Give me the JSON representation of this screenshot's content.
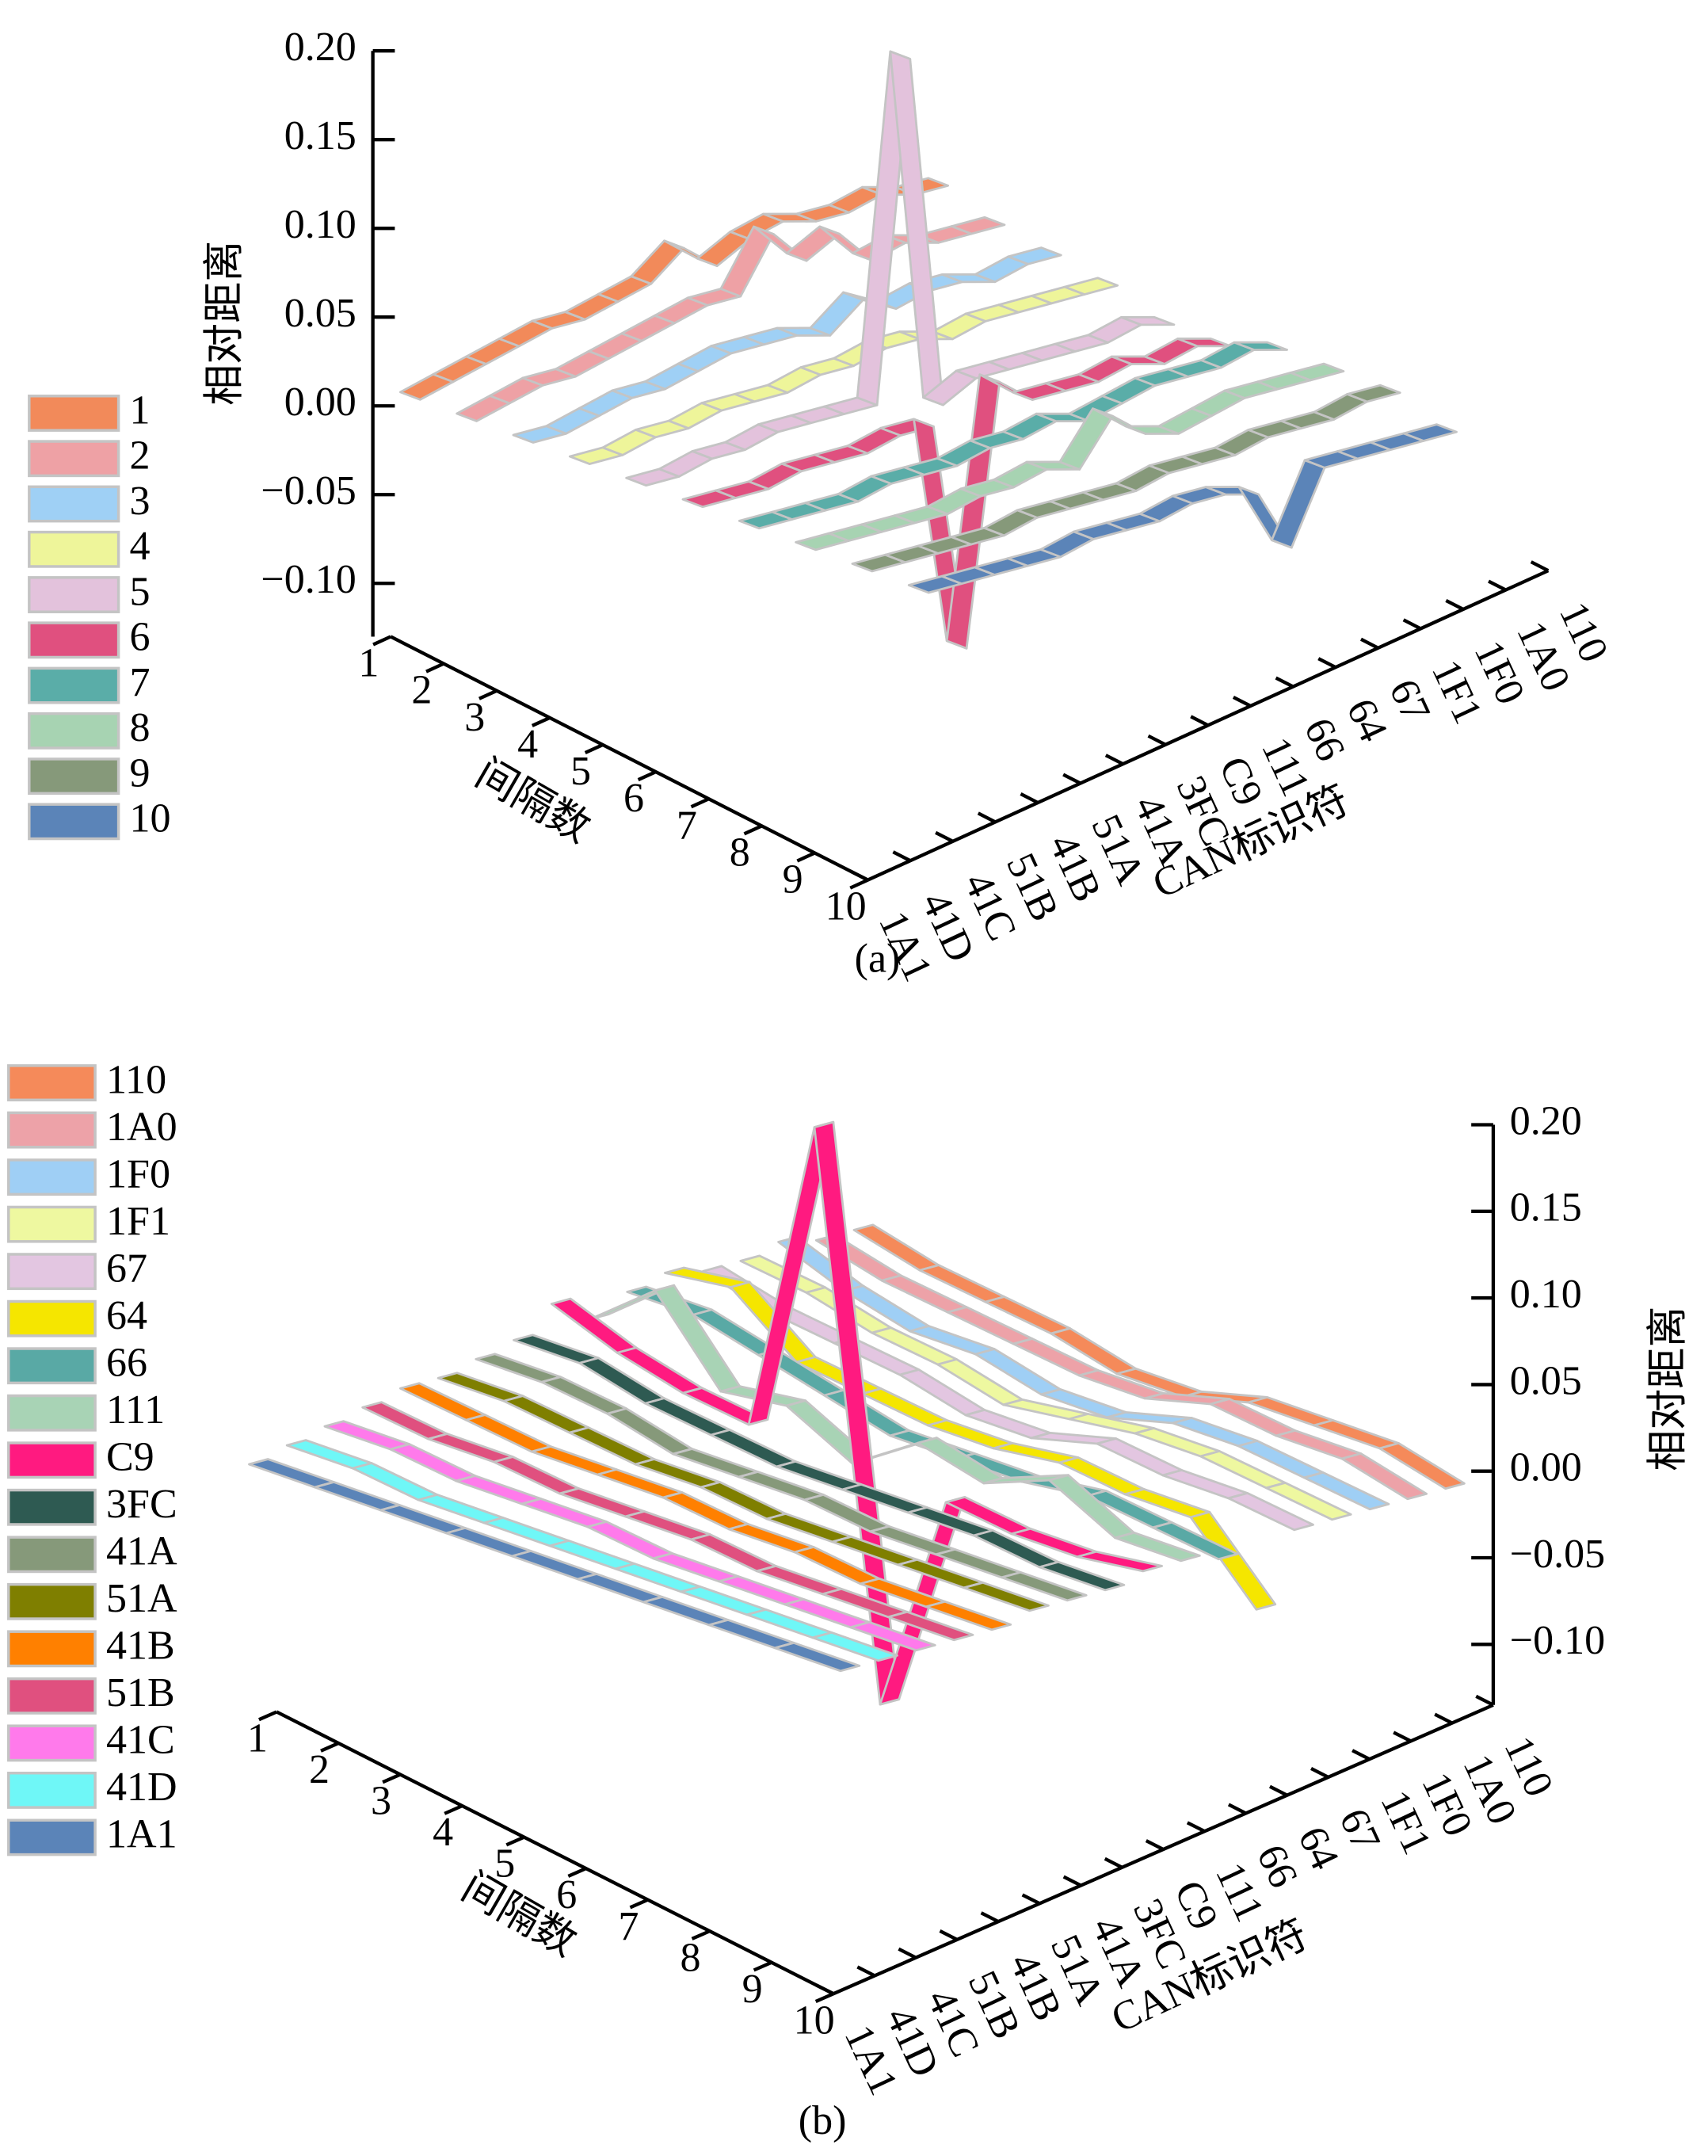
{
  "chart_data": [
    {
      "type": "ribbon3d",
      "caption": "(a)",
      "zlabel": "相对距离",
      "xlabel": "CAN标识符",
      "depth_label": "间隔数",
      "x": [
        "1A1",
        "41D",
        "41C",
        "51B",
        "41B",
        "51A",
        "41A",
        "3FC",
        "C9",
        "111",
        "66",
        "64",
        "67",
        "1F1",
        "1F0",
        "1A0",
        "110"
      ],
      "depth": [
        1,
        2,
        3,
        4,
        5,
        6,
        7,
        8,
        9,
        10
      ],
      "zlim": [
        -0.13,
        0.2
      ],
      "zticks": [
        {
          "value": 0.2,
          "label": "0.20"
        },
        {
          "value": 0.15,
          "label": "0.15"
        },
        {
          "value": 0.1,
          "label": "0.10"
        },
        {
          "value": 0.05,
          "label": "0.05"
        },
        {
          "value": 0,
          "label": "0.00"
        },
        {
          "value": -0.05,
          "label": "−0.05"
        },
        {
          "value": -0.1,
          "label": "−0.10"
        }
      ],
      "series": [
        {
          "name": "1",
          "color": "#f28a5a",
          "values": [
            0,
            0.005,
            0.01,
            0.015,
            0.02,
            0.02,
            0.025,
            0.03,
            0.045,
            0.03,
            0.04,
            0.045,
            0.04,
            0.04,
            0.045,
            0.04,
            0.04
          ]
        },
        {
          "name": "2",
          "color": "#eea1a5",
          "values": [
            0,
            0.005,
            0.01,
            0.01,
            0.015,
            0.02,
            0.025,
            0.03,
            0.03,
            0.06,
            0.04,
            0.05,
            0.03,
            0.035,
            0.03,
            0.03,
            0.03
          ]
        },
        {
          "name": "3",
          "color": "#9fd0f5",
          "values": [
            0,
            0,
            0.005,
            0.01,
            0.01,
            0.015,
            0.02,
            0.02,
            0.02,
            0.015,
            0.03,
            0.02,
            0.025,
            0.025,
            0.02,
            0.025,
            0.025
          ]
        },
        {
          "name": "4",
          "color": "#eef59a",
          "values": [
            0,
            0,
            0.005,
            0.005,
            0.01,
            0.01,
            0.01,
            0.015,
            0.015,
            0.02,
            0.02,
            0.015,
            0.02,
            0.02,
            0.02,
            0.02,
            0.02
          ]
        },
        {
          "name": "5",
          "color": "#e3c2dc",
          "values": [
            0,
            0,
            0.005,
            0.005,
            0.01,
            0.01,
            0.01,
            0.01,
            0.2,
            0,
            0.01,
            0.01,
            0.01,
            0.01,
            0.01,
            0.015,
            0.01
          ]
        },
        {
          "name": "6",
          "color": "#e0507f",
          "values": [
            0,
            0,
            0,
            0.005,
            0.005,
            0.005,
            0.01,
            0.01,
            -0.12,
            0.025,
            0.01,
            0.01,
            0.01,
            0.015,
            0.01,
            0.015,
            0.01
          ]
        },
        {
          "name": "7",
          "color": "#5aada8",
          "values": [
            0,
            0,
            0,
            0,
            0.005,
            0.005,
            0.005,
            0.01,
            0.01,
            0.015,
            0.01,
            0.015,
            0.02,
            0.02,
            0.02,
            0.025,
            0.02
          ]
        },
        {
          "name": "8",
          "color": "#a7d3b2",
          "values": [
            0,
            0,
            0,
            0,
            0,
            0.005,
            0.005,
            0.01,
            0.005,
            0.03,
            0.015,
            0.01,
            0.015,
            0.02,
            0.02,
            0.02,
            0.02
          ]
        },
        {
          "name": "9",
          "color": "#86997a",
          "values": [
            0,
            0,
            0,
            0,
            0,
            0.005,
            0.005,
            0.005,
            0.005,
            0.01,
            0.01,
            0.01,
            0.015,
            0.015,
            0.015,
            0.02,
            0.02
          ]
        },
        {
          "name": "10",
          "color": "#5b84b8",
          "values": [
            0,
            0,
            0,
            0,
            0,
            0.005,
            0.005,
            0.005,
            0.01,
            0.01,
            0.005,
            -0.03,
            0.01,
            0.01,
            0.01,
            0.01,
            0.01
          ]
        }
      ]
    },
    {
      "type": "ribbon3d",
      "caption": "(b)",
      "zlabel": "相对距离",
      "xlabel": "间隔数",
      "depth_label": "CAN标识符",
      "x": [
        1,
        2,
        3,
        4,
        5,
        6,
        7,
        8,
        9,
        10
      ],
      "depth": [
        "1A1",
        "41D",
        "41C",
        "51B",
        "41B",
        "51A",
        "41A",
        "3FC",
        "C9",
        "111",
        "66",
        "64",
        "67",
        "1F1",
        "1F0",
        "1A0",
        "110"
      ],
      "zlim": [
        -0.135,
        0.2
      ],
      "zticks": [
        {
          "value": 0.2,
          "label": "0.20"
        },
        {
          "value": 0.15,
          "label": "0.15"
        },
        {
          "value": 0.1,
          "label": "0.10"
        },
        {
          "value": 0.05,
          "label": "0.05"
        },
        {
          "value": 0,
          "label": "0.00"
        },
        {
          "value": -0.05,
          "label": "−0.05"
        },
        {
          "value": -0.1,
          "label": "−0.10"
        }
      ],
      "series": [
        {
          "name": "110",
          "color": "#f58a5a",
          "values": [
            0.04,
            0.03,
            0.025,
            0.02,
            0.01,
            0.01,
            0.02,
            0.02,
            0.02,
            0.01
          ]
        },
        {
          "name": "1A0",
          "color": "#eda2a8",
          "values": [
            0.04,
            0.03,
            0.025,
            0.02,
            0.015,
            0.015,
            0.025,
            0.02,
            0.02,
            0.01
          ]
        },
        {
          "name": "1F0",
          "color": "#9fcff5",
          "values": [
            0.045,
            0.03,
            0.02,
            0.02,
            0.01,
            0.01,
            0.02,
            0.02,
            0.015,
            0.01
          ]
        },
        {
          "name": "1F1",
          "color": "#eef8a0",
          "values": [
            0.04,
            0.035,
            0.025,
            0.02,
            0.01,
            0.015,
            0.02,
            0.02,
            0.015,
            0.01
          ]
        },
        {
          "name": "67",
          "color": "#e3c6e1",
          "values": [
            0.04,
            0.03,
            0.025,
            0.02,
            0.01,
            0.01,
            0.02,
            0.015,
            0.015,
            0.01
          ]
        },
        {
          "name": "64",
          "color": "#f5e600",
          "values": [
            0.045,
            0.05,
            0.02,
            0.015,
            0.01,
            0.01,
            0.015,
            0.01,
            0.01,
            -0.03
          ]
        },
        {
          "name": "66",
          "color": "#59a9a5",
          "values": [
            0.04,
            0.04,
            0.03,
            0.02,
            0.01,
            0.01,
            0.01,
            0.015,
            0.01,
            0.005
          ]
        },
        {
          "name": "111",
          "color": "#a8d3b5",
          "values": [
            0.03,
            0.06,
            0.015,
            0.02,
            0,
            0.025,
            0.015,
            0.03,
            0.01,
            0.01
          ]
        },
        {
          "name": "C9",
          "color": "#ff1a80",
          "values": [
            0.045,
            0.03,
            0.02,
            0.015,
            0.2,
            -0.12,
            0.01,
            0.005,
            0.005,
            0.01
          ]
        },
        {
          "name": "3FC",
          "color": "#2e5a52",
          "values": [
            0.03,
            0.03,
            0.02,
            0.015,
            0.01,
            0.01,
            0.01,
            0.01,
            0.005,
            0.005
          ]
        },
        {
          "name": "41A",
          "color": "#86997a",
          "values": [
            0.025,
            0.025,
            0.02,
            0.01,
            0.01,
            0.01,
            0.005,
            0.005,
            0.005,
            0.005
          ]
        },
        {
          "name": "51A",
          "color": "#7f7f00",
          "values": [
            0.02,
            0.02,
            0.015,
            0.01,
            0.01,
            0.005,
            0.005,
            0.005,
            0.005,
            0.005
          ]
        },
        {
          "name": "41B",
          "color": "#ff8000",
          "values": [
            0.02,
            0.015,
            0.01,
            0.01,
            0.01,
            0.005,
            0.005,
            0,
            0,
            0
          ]
        },
        {
          "name": "51B",
          "color": "#e0507f",
          "values": [
            0.015,
            0.01,
            0.01,
            0.005,
            0.005,
            0.005,
            0,
            0,
            0,
            0
          ]
        },
        {
          "name": "41C",
          "color": "#ff7aeb",
          "values": [
            0.01,
            0.01,
            0.005,
            0.005,
            0.005,
            0,
            0,
            0,
            0,
            0
          ]
        },
        {
          "name": "41D",
          "color": "#6ff7f7",
          "values": [
            0.005,
            0.005,
            0,
            0,
            0,
            0,
            0,
            0,
            0,
            0
          ]
        },
        {
          "name": "1A1",
          "color": "#5b84b8",
          "values": [
            0,
            0,
            0,
            0,
            0,
            0,
            0,
            0,
            0,
            0
          ]
        }
      ]
    }
  ]
}
